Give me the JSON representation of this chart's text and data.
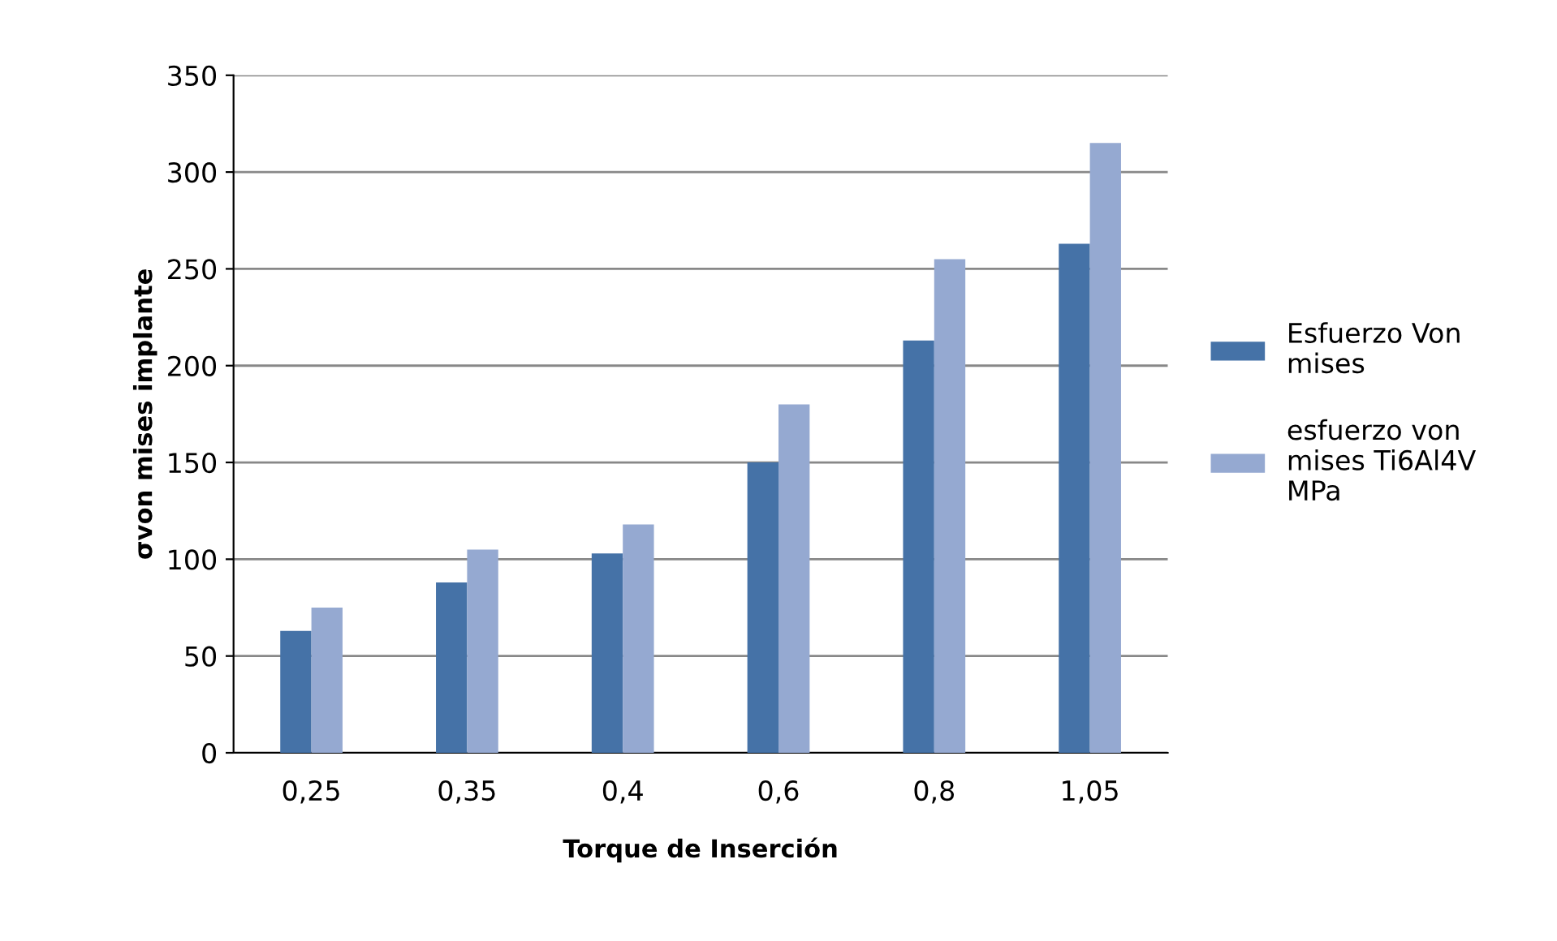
{
  "chart_data": {
    "type": "bar",
    "xlabel": "Torque de Inserción",
    "ylabel": "σvon mises implante",
    "categories": [
      "0,25",
      "0,35",
      "0,4",
      "0,6",
      "0,8",
      "1,05"
    ],
    "series": [
      {
        "name": "Esfuerzo Von mises",
        "color": "#4572a7",
        "values": [
          63,
          88,
          103,
          150,
          213,
          263
        ]
      },
      {
        "name": "esfuerzo von mises Ti6Al4V MPa",
        "color": "#95a9d1",
        "values": [
          75,
          105,
          118,
          180,
          255,
          315
        ]
      }
    ],
    "ylim": [
      0,
      350
    ],
    "yticks": [
      0,
      50,
      100,
      150,
      200,
      250,
      300,
      350
    ],
    "grid": "y",
    "legend": "right"
  }
}
